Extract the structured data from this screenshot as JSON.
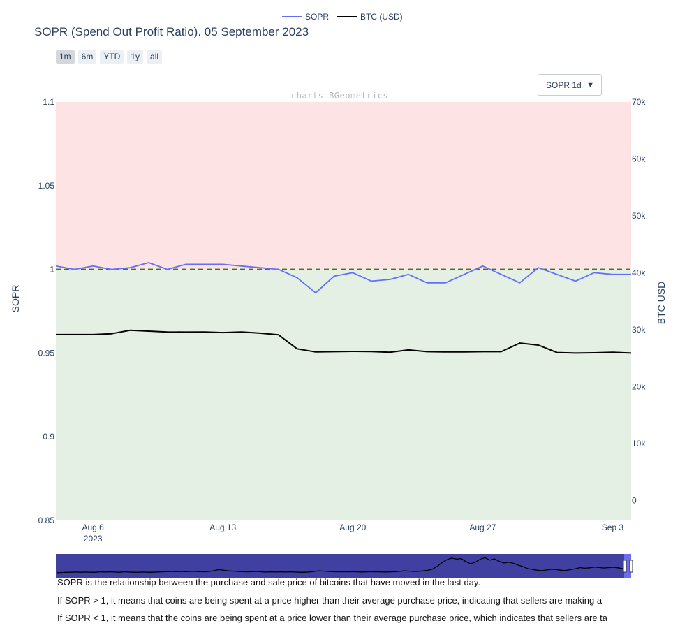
{
  "legend": {
    "sopr_label": "SOPR",
    "btc_label": "BTC (USD)"
  },
  "title": "SOPR (Spend Out Profit Ratio). 05 September 2023",
  "range_buttons": [
    "1m",
    "6m",
    "YTD",
    "1y",
    "all"
  ],
  "active_range": "1m",
  "dropdown": {
    "selected": "SOPR 1d",
    "caret": "▼"
  },
  "watermark": "charts BGeometrics",
  "description": {
    "line1": "SOPR is the relationship between the purchase and sale price of bitcoins that have moved in the last day.",
    "line2": "If SOPR > 1, it means that coins are being spent at a price higher than their average purchase price, indicating that sellers are making a",
    "line3": "If SOPR < 1, it means that the coins are being spent at a price lower than their average purchase price, which indicates that sellers are ta"
  },
  "colors": {
    "sopr": "#636efa",
    "btc": "#000000",
    "baseline": "#2e7d0f",
    "profit_zone": "#fde3e3",
    "loss_zone": "#e5f0e5",
    "navigator_bg": "#3f40a0",
    "navigator_edge": "#6b6cf0"
  },
  "chart_data": {
    "type": "line",
    "x": [
      "2023-08-04",
      "2023-08-05",
      "2023-08-06",
      "2023-08-07",
      "2023-08-08",
      "2023-08-09",
      "2023-08-10",
      "2023-08-11",
      "2023-08-12",
      "2023-08-13",
      "2023-08-14",
      "2023-08-15",
      "2023-08-16",
      "2023-08-17",
      "2023-08-18",
      "2023-08-19",
      "2023-08-20",
      "2023-08-21",
      "2023-08-22",
      "2023-08-23",
      "2023-08-24",
      "2023-08-25",
      "2023-08-26",
      "2023-08-27",
      "2023-08-28",
      "2023-08-29",
      "2023-08-30",
      "2023-08-31",
      "2023-09-01",
      "2023-09-02",
      "2023-09-03",
      "2023-09-04"
    ],
    "series": [
      {
        "name": "SOPR",
        "axis": "y_left",
        "values": [
          1.002,
          1.0,
          1.002,
          1.0,
          1.001,
          1.004,
          1.0,
          1.003,
          1.003,
          1.003,
          1.002,
          1.001,
          1.0,
          0.995,
          0.986,
          0.996,
          0.998,
          0.993,
          0.994,
          0.997,
          0.992,
          0.992,
          0.997,
          1.002,
          0.997,
          0.992,
          1.001,
          0.997,
          0.993,
          0.998,
          0.997,
          0.997
        ]
      },
      {
        "name": "BTC (USD)",
        "axis": "y_right",
        "values": [
          29150,
          29150,
          29150,
          29300,
          29900,
          29750,
          29600,
          29580,
          29600,
          29500,
          29600,
          29400,
          29100,
          26650,
          26100,
          26150,
          26200,
          26170,
          26050,
          26450,
          26150,
          26100,
          26100,
          26150,
          26150,
          27650,
          27300,
          26000,
          25900,
          25950,
          26050,
          25900
        ]
      }
    ],
    "threshold": {
      "value": 1,
      "style": "dashed"
    },
    "zones": [
      {
        "label": "profit",
        "from": 1,
        "to": 1.1
      },
      {
        "label": "loss",
        "from": 0.85,
        "to": 1
      }
    ],
    "x_ticks": [
      {
        "date": "2023-08-06",
        "label": "Aug 6",
        "sublabel": "2023"
      },
      {
        "date": "2023-08-13",
        "label": "Aug 13",
        "sublabel": ""
      },
      {
        "date": "2023-08-20",
        "label": "Aug 20",
        "sublabel": ""
      },
      {
        "date": "2023-08-27",
        "label": "Aug 27",
        "sublabel": ""
      },
      {
        "date": "2023-09-03",
        "label": "Sep 3",
        "sublabel": ""
      }
    ],
    "y_left": {
      "label": "SOPR",
      "range": [
        0.85,
        1.1
      ],
      "ticks": [
        0.85,
        0.9,
        0.95,
        1,
        1.05,
        1.1
      ],
      "tick_labels": [
        "0.85",
        "0.9",
        "0.95",
        "1",
        "1.05",
        "1.1"
      ]
    },
    "y_right": {
      "label": "BTC USD",
      "range": [
        -3500,
        70000
      ],
      "ticks": [
        0,
        10000,
        20000,
        30000,
        40000,
        50000,
        60000,
        70000
      ],
      "tick_labels": [
        "0",
        "10k",
        "20k",
        "30k",
        "40k",
        "50k",
        "60k",
        "70k"
      ]
    },
    "navigator": {
      "values": [
        0.18,
        0.19,
        0.2,
        0.2,
        0.21,
        0.2,
        0.21,
        0.2,
        0.2,
        0.22,
        0.21,
        0.22,
        0.21,
        0.2,
        0.22,
        0.21,
        0.2,
        0.2,
        0.21,
        0.2,
        0.2,
        0.21,
        0.22,
        0.23,
        0.24,
        0.23,
        0.24,
        0.23,
        0.24,
        0.24,
        0.23,
        0.22,
        0.24,
        0.28,
        0.33,
        0.3,
        0.27,
        0.26,
        0.24,
        0.23,
        0.22,
        0.23,
        0.24,
        0.22,
        0.21,
        0.22,
        0.21,
        0.22,
        0.21,
        0.22,
        0.21,
        0.2,
        0.2,
        0.21,
        0.24,
        0.27,
        0.26,
        0.24,
        0.23,
        0.22,
        0.23,
        0.22,
        0.23,
        0.22,
        0.21,
        0.22,
        0.23,
        0.22,
        0.22,
        0.21,
        0.22,
        0.23,
        0.25,
        0.27,
        0.26,
        0.24,
        0.25,
        0.27,
        0.3,
        0.36,
        0.5,
        0.68,
        0.82,
        0.9,
        0.85,
        0.88,
        0.72,
        0.62,
        0.7,
        0.84,
        0.92,
        0.8,
        0.86,
        0.74,
        0.66,
        0.7,
        0.64,
        0.55,
        0.48,
        0.38,
        0.34,
        0.3,
        0.28,
        0.31,
        0.35,
        0.33,
        0.3,
        0.29,
        0.33,
        0.37,
        0.43,
        0.4,
        0.42,
        0.46,
        0.44,
        0.41,
        0.43,
        0.45,
        0.42,
        0.38
      ]
    }
  }
}
